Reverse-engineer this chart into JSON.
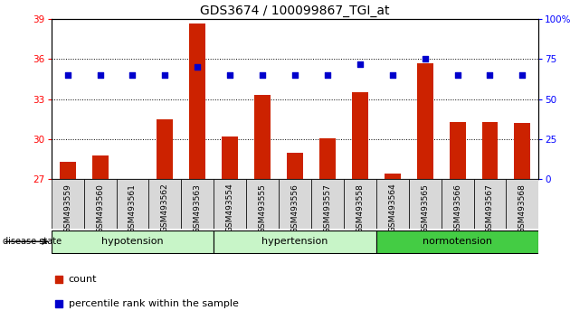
{
  "title": "GDS3674 / 100099867_TGI_at",
  "samples": [
    "GSM493559",
    "GSM493560",
    "GSM493561",
    "GSM493562",
    "GSM493563",
    "GSM493554",
    "GSM493555",
    "GSM493556",
    "GSM493557",
    "GSM493558",
    "GSM493564",
    "GSM493565",
    "GSM493566",
    "GSM493567",
    "GSM493568"
  ],
  "count_values": [
    28.3,
    28.8,
    27.0,
    31.5,
    38.7,
    30.2,
    33.3,
    29.0,
    30.1,
    33.5,
    27.4,
    35.7,
    31.3,
    31.3,
    31.2
  ],
  "percentile_values": [
    65,
    65,
    65,
    65,
    70,
    65,
    65,
    65,
    65,
    72,
    65,
    75,
    65,
    65,
    65
  ],
  "groups": [
    {
      "label": "hypotension",
      "start": 0,
      "end": 5
    },
    {
      "label": "hypertension",
      "start": 5,
      "end": 10
    },
    {
      "label": "normotension",
      "start": 10,
      "end": 15
    }
  ],
  "group_colors": [
    "#c8f5c8",
    "#c8f5c8",
    "#44cc44"
  ],
  "ylim_left": [
    27,
    39
  ],
  "ylim_right": [
    0,
    100
  ],
  "yticks_left": [
    27,
    30,
    33,
    36,
    39
  ],
  "yticks_right": [
    0,
    25,
    50,
    75,
    100
  ],
  "bar_color": "#cc2200",
  "dot_color": "#0000cc",
  "label_count": "count",
  "label_percentile": "percentile rank within the sample",
  "disease_state_label": "disease state",
  "gridlines_at": [
    30,
    33,
    36
  ]
}
